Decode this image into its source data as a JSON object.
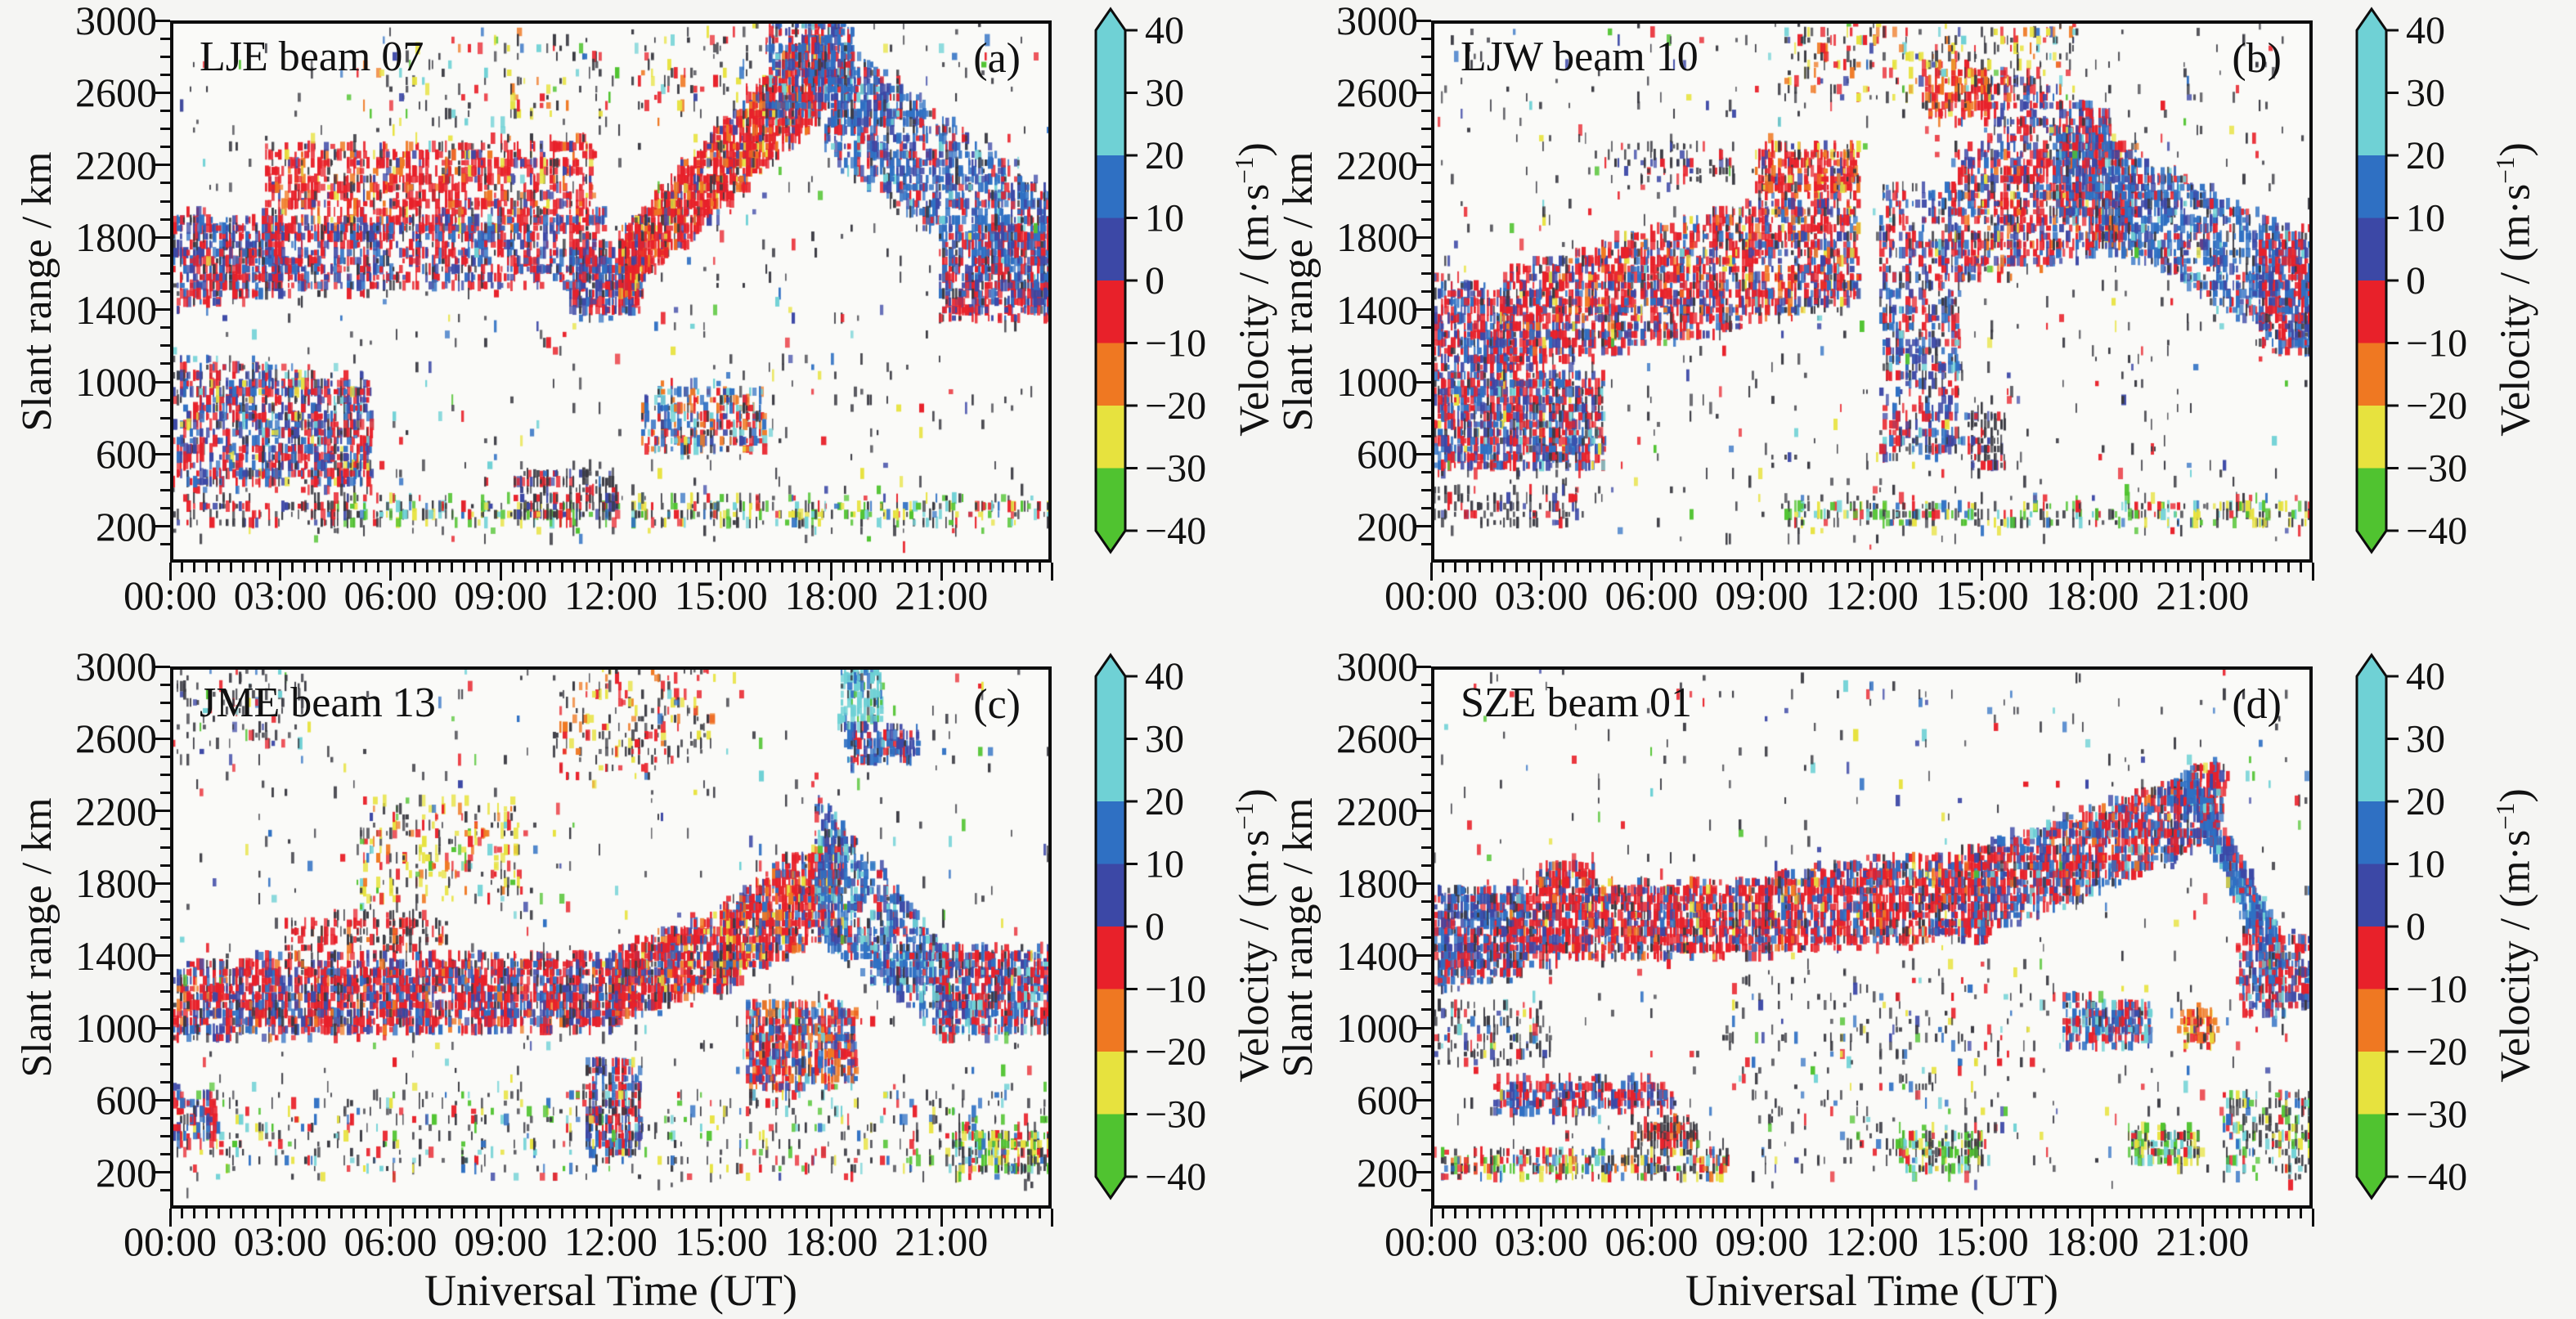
{
  "figure": {
    "background": "#f5f5f3",
    "plot_background": "#fafaf8",
    "axis_color": "#0d0d0d",
    "x_axis_title": "Universal Time (UT)",
    "y_axis_title": "Slant range / km",
    "colorbar_title_prefix": "Velocity / (m·s",
    "colorbar_title_sup": "−1",
    "colorbar_title_suffix": ")"
  },
  "chart_data": {
    "type": "heatmap",
    "x_axis": {
      "label": "Universal Time (UT)",
      "unit": "hours",
      "range": [
        0,
        24
      ],
      "major_tick_hours": [
        0,
        3,
        6,
        9,
        12,
        15,
        18,
        21
      ],
      "major_tick_labels": [
        "00:00",
        "03:00",
        "06:00",
        "09:00",
        "12:00",
        "15:00",
        "18:00",
        "21:00"
      ],
      "minor_tick_minutes": 20
    },
    "y_axis": {
      "label": "Slant range / km",
      "range": [
        0,
        3000
      ],
      "major_ticks": [
        200,
        600,
        1000,
        1400,
        1800,
        2200,
        2600,
        3000
      ],
      "minor_step": 100
    },
    "colorbar": {
      "label": "Velocity / (m·s−1)",
      "tick_values": [
        40,
        30,
        20,
        10,
        0,
        -10,
        -20,
        -30,
        -40
      ],
      "tick_labels": [
        "40",
        "30",
        "20",
        "10",
        "0",
        "−10",
        "−20",
        "−30",
        "−40"
      ],
      "segments": [
        {
          "from": 20,
          "to": 40,
          "color": "#6fd1d5"
        },
        {
          "from": 10,
          "to": 20,
          "color": "#2f70c3"
        },
        {
          "from": 0,
          "to": 10,
          "color": "#3c48a6"
        },
        {
          "from": -10,
          "to": 0,
          "color": "#e8212a"
        },
        {
          "from": -20,
          "to": -10,
          "color": "#ef7822"
        },
        {
          "from": -30,
          "to": -20,
          "color": "#e7e23e"
        },
        {
          "from": -40,
          "to": -30,
          "color": "#50c330"
        }
      ]
    },
    "point_colors": {
      "red": "#e8212a",
      "orange": "#ef7822",
      "yellow": "#e7e23e",
      "green": "#50c330",
      "cyan": "#6fd1d5",
      "blue": "#2f70c3",
      "indigo": "#3c48a6",
      "dark": "#3a3a42"
    },
    "palettes": {
      "mixRB": {
        "red": 3.5,
        "indigo": 2.4,
        "blue": 2,
        "dark": 1.6,
        "yellow": 0.3,
        "cyan": 0.3
      },
      "redBlueDense": {
        "red": 4,
        "indigo": 2.6,
        "blue": 2.2,
        "dark": 1
      },
      "redBlueDense2": {
        "red": 4.5,
        "indigo": 2.2,
        "blue": 1.6,
        "dark": 1,
        "orange": 0.5
      },
      "redMain": {
        "red": 6,
        "orange": 1,
        "indigo": 0.9,
        "dark": 1,
        "yellow": 0.3
      },
      "redMain2": {
        "red": 5,
        "indigo": 1.8,
        "blue": 1.4,
        "orange": 0.8,
        "dark": 1,
        "yellow": 0.3
      },
      "redMainD": {
        "red": 5,
        "indigo": 1.4,
        "blue": 1.2,
        "dark": 1,
        "orange": 0.4,
        "yellow": 0.25
      },
      "redRise": {
        "red": 5,
        "orange": 1.2,
        "indigo": 0.8,
        "dark": 0.8,
        "yellow": 0.4
      },
      "redRiseBlue": {
        "red": 4.2,
        "blue": 1.4,
        "orange": 1,
        "indigo": 1,
        "dark": 0.8,
        "yellow": 0.4
      },
      "blueTop": {
        "blue": 3,
        "indigo": 2.2,
        "red": 1.8,
        "dark": 1,
        "cyan": 0.4
      },
      "blueDesc": {
        "blue": 4.5,
        "indigo": 2.4,
        "red": 1.5,
        "cyan": 0.6,
        "dark": 1
      },
      "blueDescCyan": {
        "blue": 3.5,
        "indigo": 2,
        "cyan": 1.4,
        "red": 1,
        "dark": 0.8
      },
      "blueDescD": {
        "blue": 4.5,
        "indigo": 2,
        "red": 1,
        "cyan": 0.7
      },
      "blueRed": {
        "blue": 3,
        "indigo": 2.4,
        "red": 2.4,
        "dark": 0.8
      },
      "blueRedCl": {
        "blue": 2.5,
        "red": 2.5,
        "indigo": 1.2,
        "cyan": 0.8,
        "dark": 0.6
      },
      "redBlueRise": {
        "red": 3.8,
        "blue": 2.2,
        "indigo": 1.6,
        "orange": 0.5,
        "dark": 0.7,
        "cyan": 0.3
      },
      "mixRBc": {
        "red": 3,
        "blue": 2.2,
        "indigo": 1.8,
        "cyan": 0.8,
        "dark": 1
      },
      "vertMix": {
        "red": 3,
        "indigo": 2.4,
        "blue": 2,
        "dark": 2,
        "cyan": 0.4
      },
      "redOrange": {
        "red": 3.4,
        "orange": 2,
        "dark": 1,
        "yellow": 0.6
      },
      "redOrangeBlue": {
        "red": 3.5,
        "orange": 1.8,
        "blue": 1.6,
        "indigo": 1,
        "dark": 0.8,
        "cyan": 0.3
      },
      "cyanMix": {
        "cyan": 1.5,
        "blue": 2,
        "red": 2,
        "orange": 1.4,
        "indigo": 1,
        "dark": 1
      },
      "cyanStreak": {
        "cyan": 3,
        "blue": 1,
        "green": 0.5,
        "dark": 0.6
      },
      "upperScatter": {
        "dark": 2.4,
        "red": 1.6,
        "yellow": 0.9,
        "orange": 0.5,
        "green": 0.3,
        "cyan": 0.3
      },
      "upperScatter2": {
        "dark": 2.4,
        "red": 1.6,
        "yellow": 1.4,
        "orange": 1,
        "cyan": 0.4,
        "indigo": 0.6
      },
      "upperScatterC": {
        "yellow": 2,
        "red": 1.4,
        "dark": 2,
        "orange": 0.7,
        "green": 0.5,
        "cyan": 0.4
      },
      "darkCol": {
        "dark": 4,
        "red": 1,
        "indigo": 0.8
      },
      "darkRed": {
        "dark": 2.5,
        "red": 1.5,
        "orange": 0.4
      },
      "darkRedYellow": {
        "dark": 2.5,
        "red": 1.2,
        "yellow": 0.8,
        "orange": 0.5
      },
      "bottomLine": {
        "dark": 2.6,
        "green": 1.3,
        "yellow": 1.2,
        "cyan": 0.8,
        "red": 0.7,
        "blue": 0.4
      },
      "bottomNoiseC": {
        "dark": 3.5,
        "red": 0.9,
        "green": 0.7,
        "yellow": 0.7,
        "cyan": 0.5,
        "blue": 0.5
      },
      "bottomLineD": {
        "dark": 2.5,
        "red": 1.2,
        "yellow": 0.8,
        "blue": 0.6,
        "green": 0.5,
        "cyan": 0.4,
        "orange": 0.4
      },
      "greenCyan": {
        "green": 1.4,
        "cyan": 1,
        "yellow": 0.8,
        "dark": 1.6,
        "red": 0.6
      },
      "orangeBits": {
        "orange": 2,
        "yellow": 1,
        "red": 1,
        "dark": 0.8
      },
      "noise": {
        "dark": 5,
        "red": 0.8,
        "blue": 0.5,
        "indigo": 0.4,
        "yellow": 0.4,
        "cyan": 0.3,
        "green": 0.3
      }
    },
    "panels": [
      {
        "label": "LJE beam 07",
        "letter": "(a)",
        "seed": 11,
        "regions": [
          [
            0,
            5.4,
            380,
            430,
            1150,
            1000,
            1050,
            "mixRB"
          ],
          [
            0,
            3,
            1400,
            1500,
            1950,
            1900,
            520,
            "redBlueDense"
          ],
          [
            2.5,
            11.5,
            1800,
            1900,
            2300,
            2350,
            950,
            "redMain"
          ],
          [
            2.5,
            11.8,
            1500,
            1550,
            1850,
            1950,
            850,
            "redBlueDense"
          ],
          [
            10.8,
            12.8,
            1350,
            1400,
            1800,
            1700,
            320,
            "redBlueDense"
          ],
          [
            12.2,
            17.8,
            1450,
            2500,
            1800,
            3050,
            1400,
            "redRise"
          ],
          [
            16.2,
            18.6,
            2450,
            2550,
            3050,
            3050,
            420,
            "blueTop"
          ],
          [
            17.8,
            24,
            2300,
            1350,
            2950,
            2050,
            1250,
            "blueDesc"
          ],
          [
            21,
            24,
            1350,
            1350,
            1750,
            1950,
            450,
            "redBlueDense"
          ],
          [
            5,
            16,
            2350,
            2500,
            2900,
            3000,
            150,
            "upperScatter"
          ],
          [
            12.8,
            16.2,
            600,
            620,
            980,
            950,
            300,
            "cyanMix"
          ],
          [
            4,
            24,
            200,
            200,
            330,
            330,
            440,
            "bottomLine"
          ],
          [
            9.3,
            12.2,
            240,
            240,
            520,
            470,
            170,
            "darkCol"
          ],
          [
            0,
            5,
            200,
            200,
            330,
            330,
            120,
            "darkCol"
          ],
          [
            0,
            24,
            100,
            100,
            3000,
            3000,
            620,
            "noise"
          ]
        ]
      },
      {
        "label": "LJW beam 10",
        "letter": "(b)",
        "seed": 22,
        "regions": [
          [
            0,
            4.6,
            500,
            540,
            1080,
            1020,
            950,
            "mixRB"
          ],
          [
            0,
            2.2,
            1080,
            1100,
            1600,
            1450,
            360,
            "redBlueDense"
          ],
          [
            1.8,
            11.6,
            1050,
            1450,
            1600,
            2150,
            1900,
            "redMain2"
          ],
          [
            8.8,
            11.6,
            2050,
            2100,
            2350,
            2300,
            240,
            "redRise"
          ],
          [
            12.2,
            14.4,
            560,
            600,
            2100,
            2050,
            620,
            "vertMix"
          ],
          [
            14.2,
            19.2,
            1550,
            1750,
            2250,
            2350,
            900,
            "redMain2"
          ],
          [
            15,
            18.5,
            2250,
            2300,
            2750,
            2500,
            280,
            "redBlueDense"
          ],
          [
            17,
            24,
            1950,
            1150,
            2450,
            1800,
            1150,
            "blueDesc"
          ],
          [
            22.6,
            24,
            1150,
            1200,
            1800,
            1800,
            240,
            "redBlueDense"
          ],
          [
            9.6,
            17.6,
            2550,
            2600,
            3000,
            3000,
            240,
            "upperScatter2"
          ],
          [
            13.4,
            15.2,
            2450,
            2500,
            2800,
            2750,
            160,
            "redOrange"
          ],
          [
            4.6,
            8.2,
            2050,
            2100,
            2350,
            2300,
            90,
            "darkCol"
          ],
          [
            9.5,
            24,
            200,
            200,
            320,
            320,
            330,
            "bottomLine"
          ],
          [
            0,
            4,
            200,
            200,
            420,
            420,
            120,
            "darkCol"
          ],
          [
            14.6,
            15.6,
            520,
            520,
            820,
            820,
            100,
            "darkCol"
          ],
          [
            0,
            24,
            100,
            100,
            3000,
            3000,
            620,
            "noise"
          ]
        ]
      },
      {
        "label": "JME beam 13",
        "letter": "(c)",
        "seed": 33,
        "regions": [
          [
            0,
            12.2,
            950,
            1000,
            1360,
            1400,
            2000,
            "redBlueDense2"
          ],
          [
            3,
            7.5,
            1360,
            1450,
            1600,
            1650,
            190,
            "darkRed"
          ],
          [
            12,
            15.4,
            1050,
            1250,
            1400,
            1680,
            750,
            "redMain2"
          ],
          [
            15,
            18.3,
            1250,
            1550,
            1680,
            2100,
            800,
            "redRiseBlue"
          ],
          [
            17.6,
            21.3,
            1500,
            950,
            2300,
            1380,
            750,
            "blueDescCyan"
          ],
          [
            21,
            24,
            950,
            1000,
            1420,
            1420,
            620,
            "mixRBc"
          ],
          [
            15.7,
            18.7,
            640,
            700,
            1120,
            1100,
            580,
            "redOrangeBlue"
          ],
          [
            11.3,
            12.8,
            280,
            300,
            820,
            780,
            280,
            "vertMix"
          ],
          [
            5,
            9.6,
            1680,
            1700,
            2260,
            2250,
            240,
            "upperScatterC"
          ],
          [
            10.4,
            14.8,
            2300,
            2550,
            3050,
            3050,
            210,
            "darkRedYellow"
          ],
          [
            18.2,
            19.4,
            2600,
            2700,
            3050,
            3050,
            170,
            "cyanStreak"
          ],
          [
            18.4,
            20.4,
            2460,
            2520,
            2700,
            2650,
            160,
            "blueTop"
          ],
          [
            0,
            3.6,
            2500,
            2550,
            3000,
            3000,
            100,
            "noise"
          ],
          [
            0,
            24,
            180,
            180,
            640,
            640,
            560,
            "bottomNoiseC"
          ],
          [
            0,
            1.2,
            350,
            380,
            640,
            620,
            90,
            "redBlueDense"
          ],
          [
            21.3,
            24,
            190,
            190,
            420,
            420,
            180,
            "bottomLine"
          ],
          [
            0,
            24,
            100,
            100,
            3000,
            3000,
            480,
            "noise"
          ]
        ]
      },
      {
        "label": "SZE beam 01",
        "letter": "(d)",
        "seed": 44,
        "regions": [
          [
            0,
            2.4,
            1230,
            1300,
            1760,
            1760,
            600,
            "blueRed"
          ],
          [
            2,
            9.2,
            1380,
            1420,
            1780,
            1800,
            1200,
            "redMainD"
          ],
          [
            2.8,
            4.4,
            1780,
            1800,
            1900,
            1900,
            110,
            "redMainD"
          ],
          [
            9,
            15.2,
            1430,
            1520,
            1850,
            1980,
            1200,
            "redMainD"
          ],
          [
            14.8,
            20.4,
            1520,
            1950,
            1980,
            2380,
            1100,
            "redBlueRise"
          ],
          [
            20.2,
            21.6,
            1950,
            2100,
            2380,
            2480,
            280,
            "redBlueDense"
          ],
          [
            20.6,
            23.2,
            2300,
            1150,
            2480,
            1500,
            460,
            "blueDescD"
          ],
          [
            22,
            24,
            1050,
            1100,
            1550,
            1500,
            260,
            "mixRBc"
          ],
          [
            17.2,
            19.6,
            900,
            920,
            1150,
            1120,
            240,
            "blueRedCl"
          ],
          [
            20.4,
            21.4,
            900,
            920,
            1080,
            1060,
            90,
            "orangeBits"
          ],
          [
            1.6,
            6.6,
            520,
            540,
            700,
            680,
            280,
            "redBlueDense"
          ],
          [
            5.4,
            7.2,
            330,
            350,
            480,
            470,
            120,
            "darkRed"
          ],
          [
            0,
            8,
            170,
            170,
            300,
            300,
            300,
            "bottomLineD"
          ],
          [
            12.6,
            15,
            190,
            200,
            420,
            400,
            150,
            "greenCyan"
          ],
          [
            19,
            21,
            240,
            250,
            420,
            400,
            130,
            "greenCyan"
          ],
          [
            21.6,
            24,
            180,
            180,
            620,
            620,
            180,
            "bottomNoiseC"
          ],
          [
            0,
            3.2,
            780,
            800,
            1120,
            1100,
            130,
            "noise"
          ],
          [
            8,
            17,
            200,
            200,
            1300,
            1300,
            240,
            "noise"
          ],
          [
            0,
            24,
            100,
            100,
            3000,
            3000,
            460,
            "noise"
          ]
        ]
      }
    ]
  }
}
